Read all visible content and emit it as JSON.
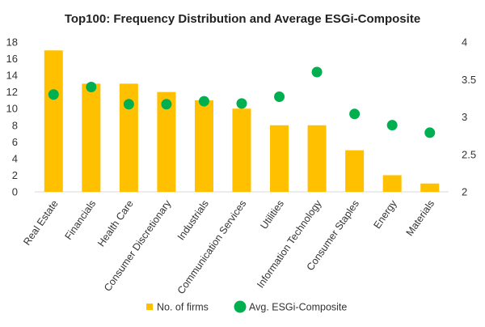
{
  "chart_data": {
    "type": "bar+scatter",
    "title": "Top100: Frequency Distribution and Average ESGi-Composite",
    "categories": [
      "Real Estate",
      "Financials",
      "Health Care",
      "Consumer Discretionary",
      "Industrials",
      "Communication Services",
      "Utilities",
      "Information Technology",
      "Consumer Staples",
      "Energy",
      "Materials"
    ],
    "series": [
      {
        "name": "No. of firms",
        "kind": "bar",
        "axis": "left",
        "color": "#FFC000",
        "values": [
          17,
          13,
          13,
          12,
          11,
          10,
          8,
          8,
          5,
          2,
          1
        ]
      },
      {
        "name": "Avg. ESGi-Composite",
        "kind": "scatter",
        "axis": "right",
        "color": "#00B050",
        "values": [
          3.3,
          3.4,
          3.17,
          3.17,
          3.21,
          3.18,
          3.27,
          3.6,
          3.04,
          2.89,
          2.79
        ]
      }
    ],
    "left_axis": {
      "min": 0,
      "max": 18,
      "step": 2,
      "ticks": [
        "0",
        "2",
        "4",
        "6",
        "8",
        "10",
        "12",
        "14",
        "16",
        "18"
      ]
    },
    "right_axis": {
      "min": 2,
      "max": 4,
      "step": 0.5,
      "ticks": [
        "2",
        "2.5",
        "3",
        "3.5",
        "4"
      ]
    },
    "legend_position": "bottom"
  }
}
